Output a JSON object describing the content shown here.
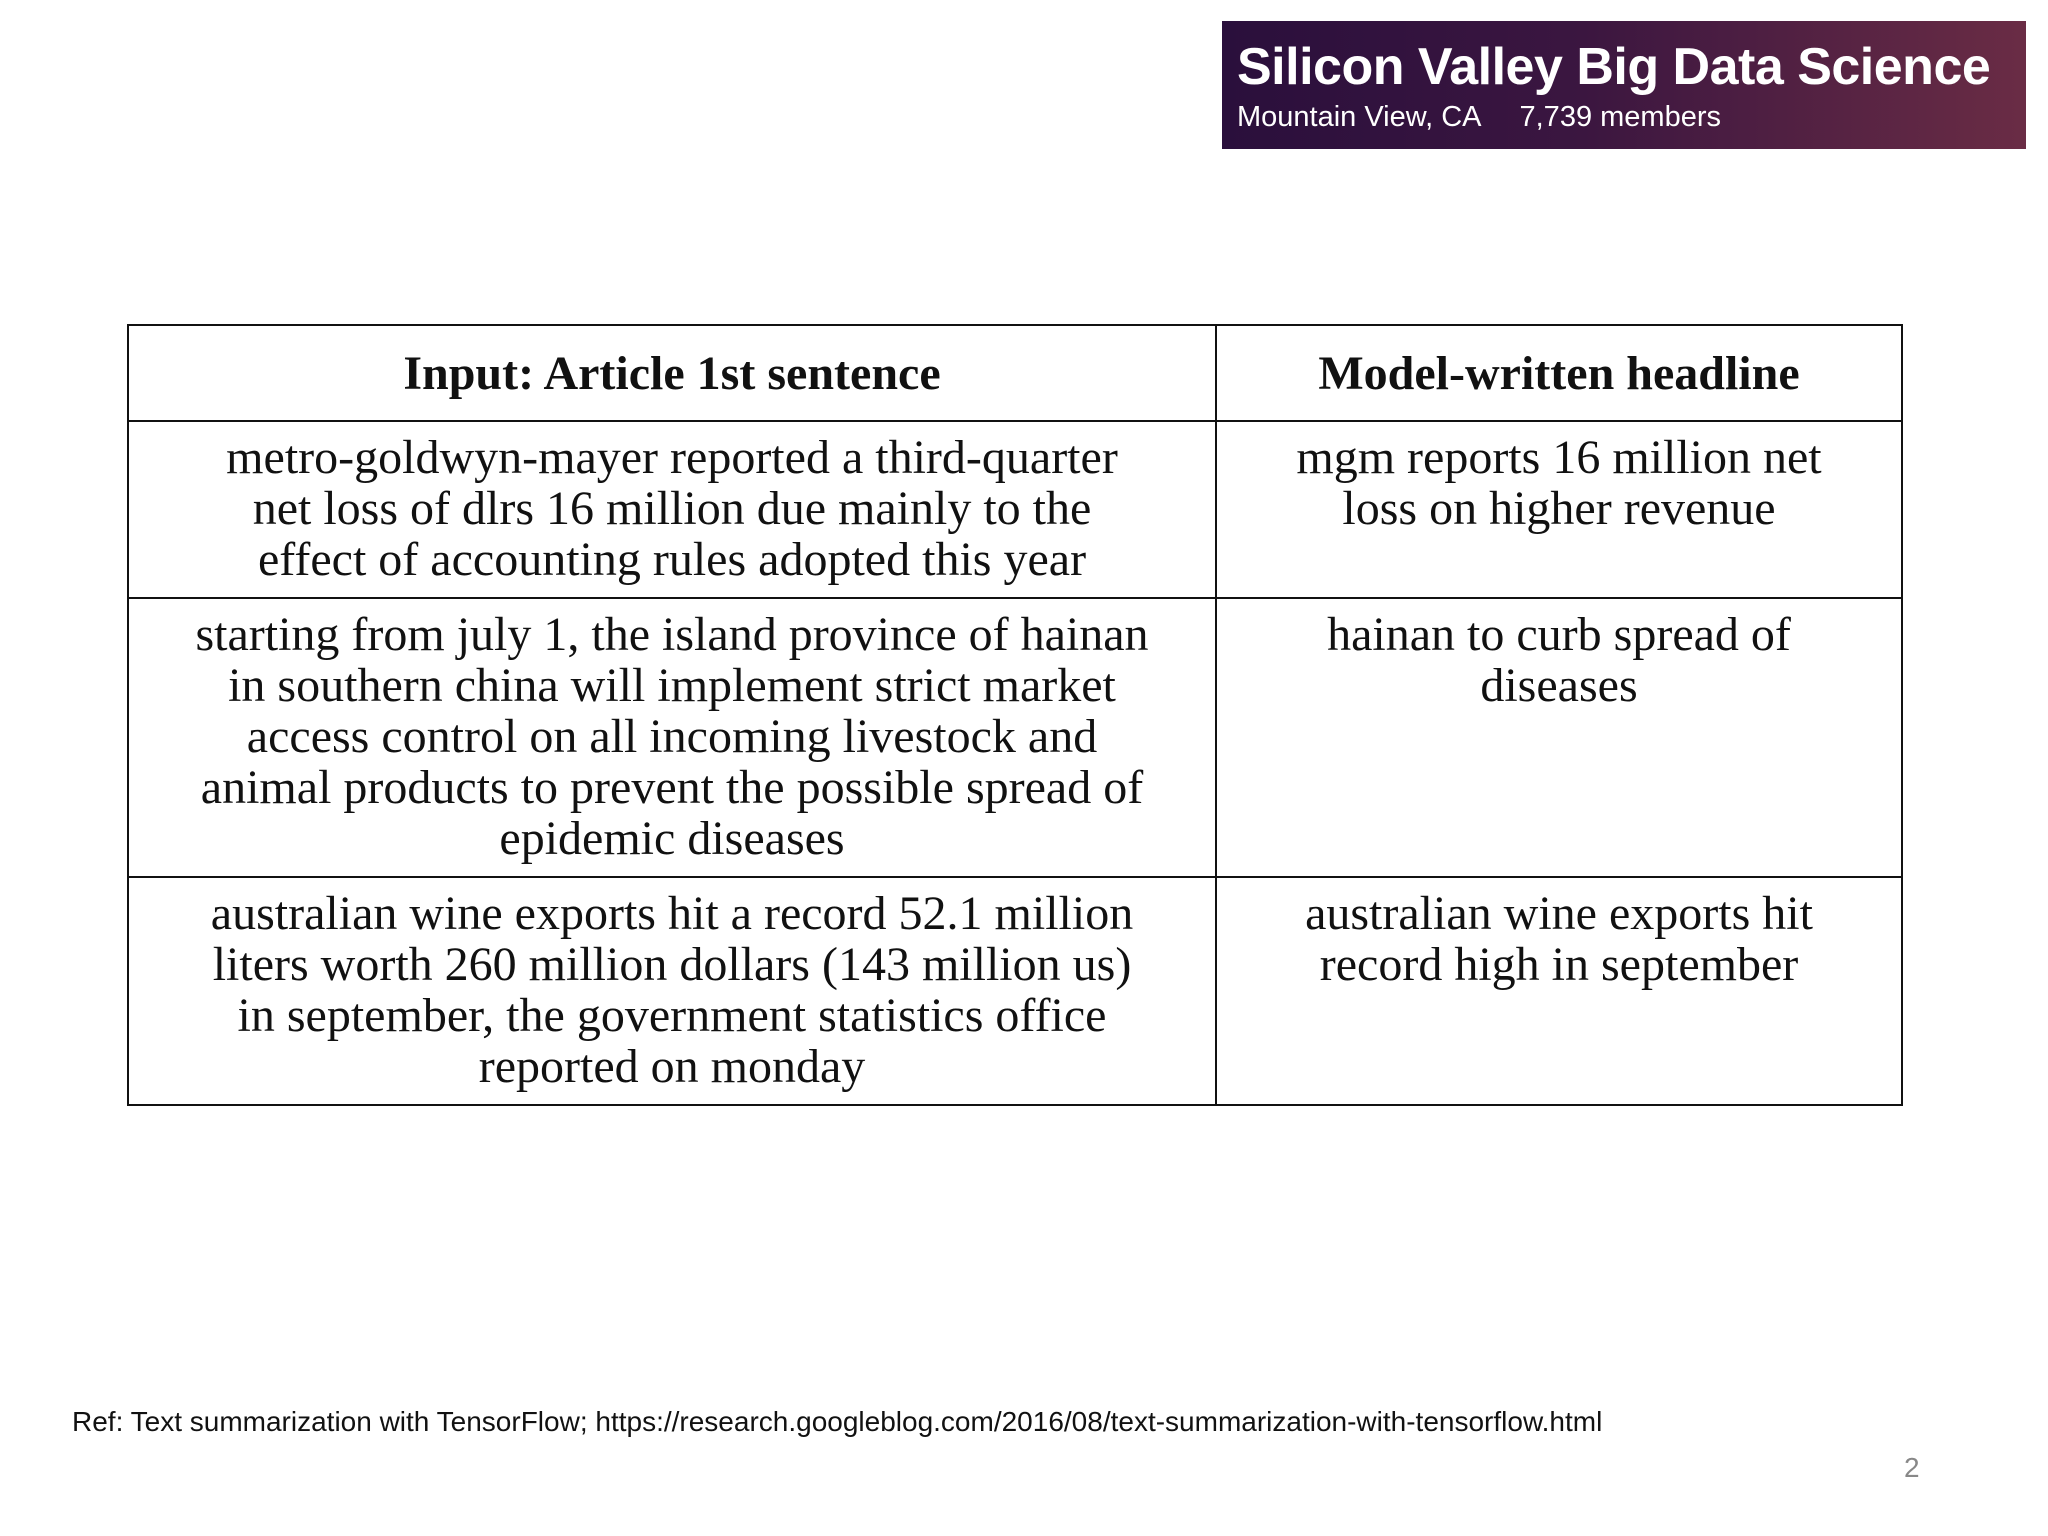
{
  "banner": {
    "title": "Silicon Valley Big Data Science",
    "location": "Mountain View, CA",
    "members": "7,739 members"
  },
  "table": {
    "header": [
      "Input: Article 1st sentence",
      "Model-written headline"
    ],
    "rows": [
      [
        [
          "metro-goldwyn-mayer reported a third-quarter",
          "net loss of dlrs 16 million due mainly to the",
          "effect of accounting rules adopted this year"
        ],
        [
          "mgm reports 16 million net",
          "loss on higher revenue"
        ]
      ],
      [
        [
          "starting from july 1, the island province of hainan",
          "in southern china will implement strict market",
          "access control on all incoming livestock and",
          "animal products to prevent the possible spread of",
          "epidemic diseases"
        ],
        [
          "hainan to curb spread of",
          "diseases"
        ]
      ],
      [
        [
          "australian wine exports hit a record 52.1 million",
          "liters worth 260 million dollars (143 million us)",
          "in september, the government statistics office",
          "reported on monday"
        ],
        [
          "australian wine exports hit",
          "record high in september"
        ]
      ]
    ]
  },
  "footer": {
    "ref": "Ref: Text summarization with TensorFlow; https://research.googleblog.com/2016/08/text-summarization-with-tensorflow.html",
    "page": "2"
  }
}
